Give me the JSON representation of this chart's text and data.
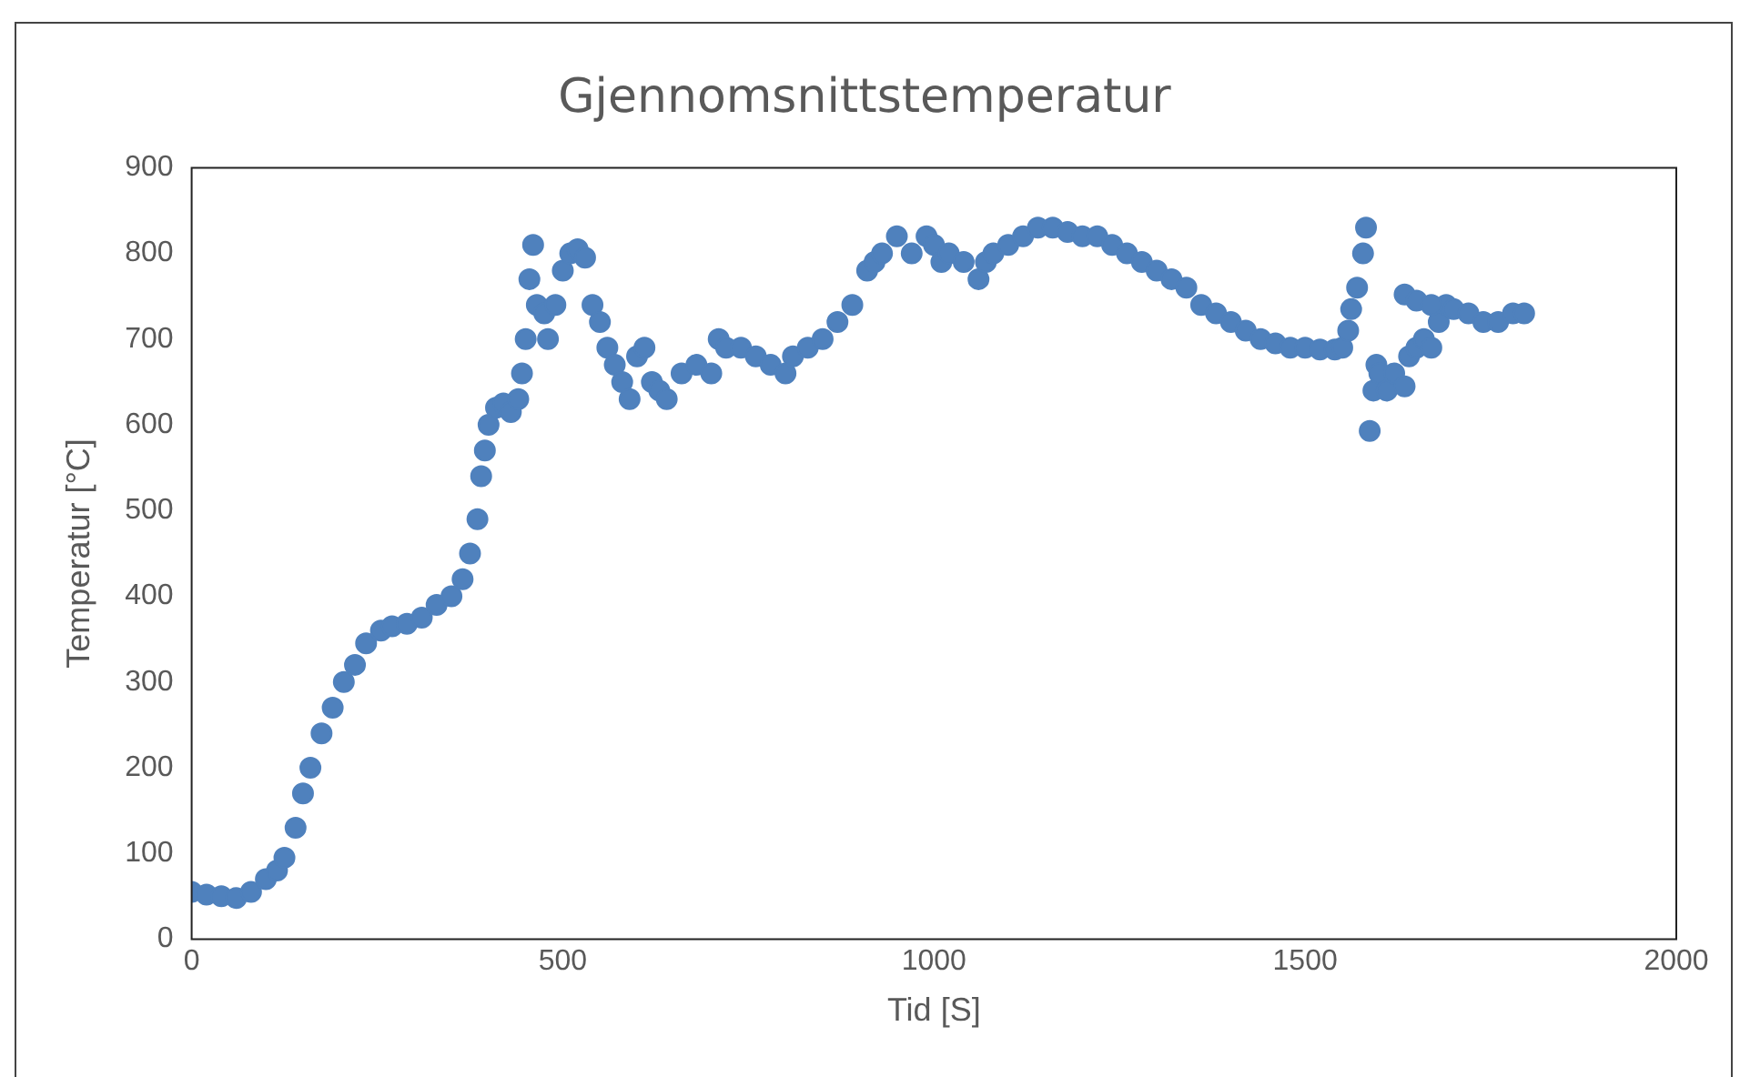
{
  "chart_data": {
    "type": "scatter",
    "title": "Gjennomsnittstemperatur",
    "xlabel": "Tid [S]",
    "ylabel": "Temperatur [°C]",
    "xlim": [
      0,
      2000
    ],
    "xticks": [
      0,
      500,
      1000,
      1500,
      2000
    ],
    "ylim": [
      0,
      900
    ],
    "yticks": [
      0,
      100,
      200,
      300,
      400,
      500,
      600,
      700,
      800,
      900
    ],
    "grid": false,
    "legend": false,
    "marker": "circle",
    "series": [
      {
        "color": "#4f81bd",
        "x": [
          0,
          20,
          40,
          60,
          80,
          100,
          115,
          125,
          140,
          150,
          160,
          175,
          190,
          205,
          220,
          235,
          255,
          270,
          290,
          310,
          330,
          350,
          365,
          375,
          385,
          390,
          395,
          400,
          410,
          420,
          430,
          440,
          445,
          450,
          455,
          460,
          465,
          475,
          480,
          490,
          500,
          510,
          520,
          530,
          540,
          550,
          560,
          570,
          580,
          590,
          600,
          610,
          620,
          630,
          640,
          660,
          680,
          700,
          710,
          720,
          740,
          760,
          780,
          800,
          810,
          830,
          850,
          870,
          890,
          910,
          920,
          930,
          950,
          970,
          990,
          1000,
          1010,
          1020,
          1040,
          1060,
          1070,
          1080,
          1100,
          1120,
          1140,
          1160,
          1180,
          1200,
          1220,
          1240,
          1260,
          1280,
          1300,
          1320,
          1340,
          1360,
          1380,
          1400,
          1420,
          1440,
          1460,
          1480,
          1500,
          1520,
          1540,
          1550,
          1558,
          1562,
          1570,
          1578,
          1582,
          1587,
          1592,
          1596,
          1600,
          1610,
          1620,
          1634,
          1640,
          1650,
          1660,
          1670,
          1680,
          1690,
          1634,
          1650,
          1670,
          1700,
          1720,
          1740,
          1760,
          1780,
          1795
        ],
        "values": [
          55,
          52,
          50,
          48,
          55,
          70,
          80,
          95,
          130,
          170,
          200,
          240,
          270,
          300,
          320,
          345,
          360,
          365,
          368,
          375,
          390,
          400,
          420,
          450,
          490,
          540,
          570,
          600,
          620,
          625,
          615,
          630,
          660,
          700,
          770,
          810,
          740,
          730,
          700,
          740,
          780,
          800,
          805,
          795,
          740,
          720,
          690,
          670,
          650,
          630,
          680,
          690,
          650,
          640,
          630,
          660,
          670,
          660,
          700,
          690,
          690,
          680,
          670,
          660,
          680,
          690,
          700,
          720,
          740,
          780,
          790,
          800,
          820,
          800,
          820,
          810,
          790,
          800,
          790,
          770,
          790,
          800,
          810,
          820,
          830,
          830,
          825,
          820,
          820,
          810,
          800,
          790,
          780,
          770,
          760,
          740,
          730,
          720,
          710,
          700,
          695,
          690,
          690,
          688,
          688,
          690,
          710,
          735,
          760,
          800,
          830,
          593,
          640,
          670,
          660,
          640,
          660,
          645,
          680,
          690,
          700,
          690,
          720,
          740,
          752,
          745,
          740,
          735,
          730,
          720,
          720,
          730,
          730
        ]
      }
    ]
  }
}
